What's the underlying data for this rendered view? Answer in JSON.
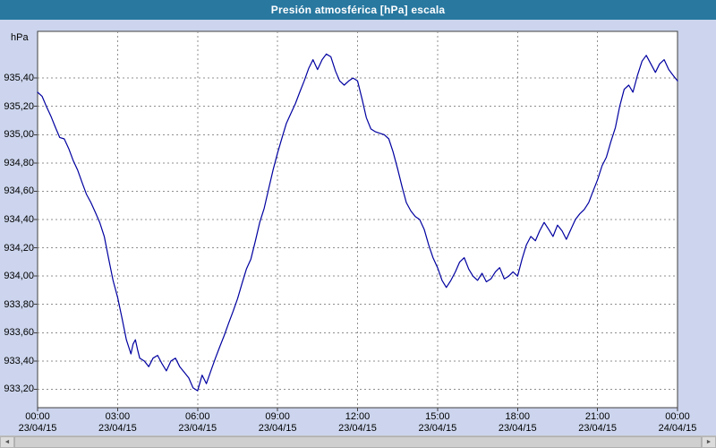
{
  "title": "Presión atmosférica [hPa] escala",
  "colors": {
    "header_bg": "#2878a0",
    "header_text": "#ffffff",
    "outer_bg": "#ccd5ed",
    "plot_bg": "#ffffff",
    "grid": "#8f8f8f",
    "line": "#0000a0"
  },
  "scrollbar": {
    "left_arrow": "◄",
    "right_arrow": "►"
  },
  "chart_data": {
    "type": "line",
    "title": "Presión atmosférica [hPa] escala",
    "xlabel": "",
    "ylabel": "hPa",
    "xlim": [
      0,
      24
    ],
    "ylim": [
      933.07,
      935.73
    ],
    "grid": "dashed",
    "legend": "none",
    "y_tick_labels": [
      "933,20",
      "933,40",
      "933,60",
      "933,80",
      "934,00",
      "934,20",
      "934,40",
      "934,60",
      "934,80",
      "935,00",
      "935,20",
      "935,40"
    ],
    "y_tick_values": [
      933.2,
      933.4,
      933.6,
      933.8,
      934.0,
      934.2,
      934.4,
      934.6,
      934.8,
      935.0,
      935.2,
      935.4
    ],
    "x_ticks": [
      {
        "h": 0,
        "time": "00:00",
        "date": "23/04/15"
      },
      {
        "h": 3,
        "time": "03:00",
        "date": "23/04/15"
      },
      {
        "h": 6,
        "time": "06:00",
        "date": "23/04/15"
      },
      {
        "h": 9,
        "time": "09:00",
        "date": "23/04/15"
      },
      {
        "h": 12,
        "time": "12:00",
        "date": "23/04/15"
      },
      {
        "h": 15,
        "time": "15:00",
        "date": "23/04/15"
      },
      {
        "h": 18,
        "time": "18:00",
        "date": "23/04/15"
      },
      {
        "h": 21,
        "time": "21:00",
        "date": "23/04/15"
      },
      {
        "h": 24,
        "time": "00:00",
        "date": "24/04/15"
      }
    ],
    "series": [
      {
        "name": "Presión atmosférica [hPa]",
        "points": [
          [
            0,
            935.3
          ],
          [
            0.17,
            935.27
          ],
          [
            0.33,
            935.2
          ],
          [
            0.5,
            935.13
          ],
          [
            0.67,
            935.05
          ],
          [
            0.83,
            934.98
          ],
          [
            1.0,
            934.97
          ],
          [
            1.17,
            934.9
          ],
          [
            1.33,
            934.82
          ],
          [
            1.5,
            934.75
          ],
          [
            1.67,
            934.66
          ],
          [
            1.83,
            934.58
          ],
          [
            2.0,
            934.52
          ],
          [
            2.17,
            934.45
          ],
          [
            2.33,
            934.38
          ],
          [
            2.5,
            934.28
          ],
          [
            2.67,
            934.12
          ],
          [
            2.83,
            933.97
          ],
          [
            3.0,
            933.85
          ],
          [
            3.17,
            933.7
          ],
          [
            3.33,
            933.55
          ],
          [
            3.5,
            933.45
          ],
          [
            3.58,
            933.52
          ],
          [
            3.67,
            933.55
          ],
          [
            3.75,
            933.48
          ],
          [
            3.83,
            933.42
          ],
          [
            4.0,
            933.4
          ],
          [
            4.17,
            933.36
          ],
          [
            4.33,
            933.42
          ],
          [
            4.5,
            933.44
          ],
          [
            4.67,
            933.38
          ],
          [
            4.83,
            933.33
          ],
          [
            5.0,
            933.4
          ],
          [
            5.17,
            933.42
          ],
          [
            5.33,
            933.36
          ],
          [
            5.5,
            933.32
          ],
          [
            5.67,
            933.28
          ],
          [
            5.83,
            933.21
          ],
          [
            6.0,
            933.19
          ],
          [
            6.08,
            933.24
          ],
          [
            6.17,
            933.3
          ],
          [
            6.25,
            933.27
          ],
          [
            6.33,
            933.24
          ],
          [
            6.5,
            933.33
          ],
          [
            6.67,
            933.42
          ],
          [
            6.83,
            933.5
          ],
          [
            7.0,
            933.58
          ],
          [
            7.17,
            933.67
          ],
          [
            7.33,
            933.75
          ],
          [
            7.5,
            933.84
          ],
          [
            7.67,
            933.95
          ],
          [
            7.83,
            934.05
          ],
          [
            8.0,
            934.12
          ],
          [
            8.17,
            934.25
          ],
          [
            8.33,
            934.38
          ],
          [
            8.5,
            934.48
          ],
          [
            8.67,
            934.62
          ],
          [
            8.83,
            934.75
          ],
          [
            9.0,
            934.87
          ],
          [
            9.17,
            934.98
          ],
          [
            9.33,
            935.08
          ],
          [
            9.5,
            935.15
          ],
          [
            9.67,
            935.22
          ],
          [
            9.83,
            935.3
          ],
          [
            10.0,
            935.38
          ],
          [
            10.17,
            935.47
          ],
          [
            10.33,
            935.53
          ],
          [
            10.5,
            935.46
          ],
          [
            10.67,
            935.53
          ],
          [
            10.83,
            935.57
          ],
          [
            11.0,
            935.55
          ],
          [
            11.17,
            935.45
          ],
          [
            11.33,
            935.38
          ],
          [
            11.5,
            935.35
          ],
          [
            11.67,
            935.38
          ],
          [
            11.83,
            935.4
          ],
          [
            12.0,
            935.38
          ],
          [
            12.17,
            935.25
          ],
          [
            12.33,
            935.12
          ],
          [
            12.5,
            935.04
          ],
          [
            12.67,
            935.02
          ],
          [
            12.83,
            935.01
          ],
          [
            13.0,
            935.0
          ],
          [
            13.17,
            934.97
          ],
          [
            13.33,
            934.88
          ],
          [
            13.5,
            934.76
          ],
          [
            13.67,
            934.63
          ],
          [
            13.83,
            934.52
          ],
          [
            14.0,
            934.46
          ],
          [
            14.17,
            934.42
          ],
          [
            14.33,
            934.4
          ],
          [
            14.5,
            934.33
          ],
          [
            14.67,
            934.22
          ],
          [
            14.83,
            934.13
          ],
          [
            15.0,
            934.06
          ],
          [
            15.17,
            933.97
          ],
          [
            15.33,
            933.92
          ],
          [
            15.5,
            933.97
          ],
          [
            15.67,
            934.03
          ],
          [
            15.83,
            934.1
          ],
          [
            16.0,
            934.13
          ],
          [
            16.17,
            934.05
          ],
          [
            16.33,
            934.0
          ],
          [
            16.5,
            933.97
          ],
          [
            16.67,
            934.02
          ],
          [
            16.83,
            933.96
          ],
          [
            17.0,
            933.98
          ],
          [
            17.17,
            934.03
          ],
          [
            17.33,
            934.06
          ],
          [
            17.5,
            933.98
          ],
          [
            17.67,
            934.0
          ],
          [
            17.83,
            934.03
          ],
          [
            18.0,
            934.0
          ],
          [
            18.17,
            934.12
          ],
          [
            18.33,
            934.22
          ],
          [
            18.5,
            934.28
          ],
          [
            18.67,
            934.25
          ],
          [
            18.83,
            934.32
          ],
          [
            19.0,
            934.38
          ],
          [
            19.17,
            934.33
          ],
          [
            19.33,
            934.28
          ],
          [
            19.5,
            934.36
          ],
          [
            19.67,
            934.32
          ],
          [
            19.83,
            934.26
          ],
          [
            20.0,
            934.33
          ],
          [
            20.17,
            934.4
          ],
          [
            20.33,
            934.44
          ],
          [
            20.5,
            934.47
          ],
          [
            20.67,
            934.52
          ],
          [
            20.83,
            934.6
          ],
          [
            21.0,
            934.68
          ],
          [
            21.17,
            934.78
          ],
          [
            21.33,
            934.84
          ],
          [
            21.5,
            934.95
          ],
          [
            21.67,
            935.05
          ],
          [
            21.83,
            935.2
          ],
          [
            22.0,
            935.32
          ],
          [
            22.17,
            935.35
          ],
          [
            22.33,
            935.3
          ],
          [
            22.5,
            935.42
          ],
          [
            22.67,
            935.52
          ],
          [
            22.83,
            935.56
          ],
          [
            23.0,
            935.5
          ],
          [
            23.17,
            935.44
          ],
          [
            23.33,
            935.5
          ],
          [
            23.5,
            935.53
          ],
          [
            23.67,
            935.46
          ],
          [
            23.83,
            935.42
          ],
          [
            24.0,
            935.38
          ]
        ]
      }
    ]
  }
}
